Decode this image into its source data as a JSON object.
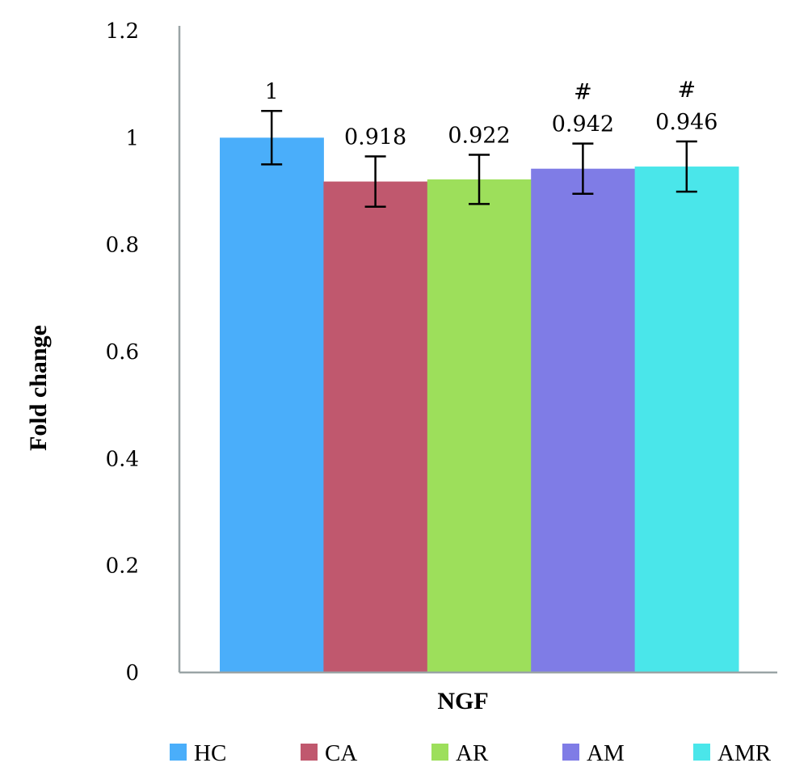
{
  "chart_data": {
    "type": "bar",
    "xlabel": "NGF",
    "ylabel": "Fold change",
    "ylim": [
      0,
      1.2
    ],
    "yticks": [
      "0",
      "0.2",
      "0.4",
      "0.6",
      "0.8",
      "1",
      "1.2"
    ],
    "grid": false,
    "legend_position": "bottom",
    "series": [
      {
        "name": "HC",
        "value": 1,
        "label": "1",
        "error": 0.05,
        "mark": "",
        "color": "#4aaefa"
      },
      {
        "name": "CA",
        "value": 0.918,
        "label": "0.918",
        "error": 0.047,
        "mark": "",
        "color": "#c0586e"
      },
      {
        "name": "AR",
        "value": 0.922,
        "label": "0.922",
        "error": 0.046,
        "mark": "",
        "color": "#9ddf5b"
      },
      {
        "name": "AM",
        "value": 0.942,
        "label": "0.942",
        "error": 0.047,
        "mark": "#",
        "color": "#7f7ce6"
      },
      {
        "name": "AMR",
        "value": 0.946,
        "label": "0.946",
        "error": 0.047,
        "mark": "#",
        "color": "#4ae6ea"
      }
    ]
  },
  "axis_color": "#9aa4a6"
}
